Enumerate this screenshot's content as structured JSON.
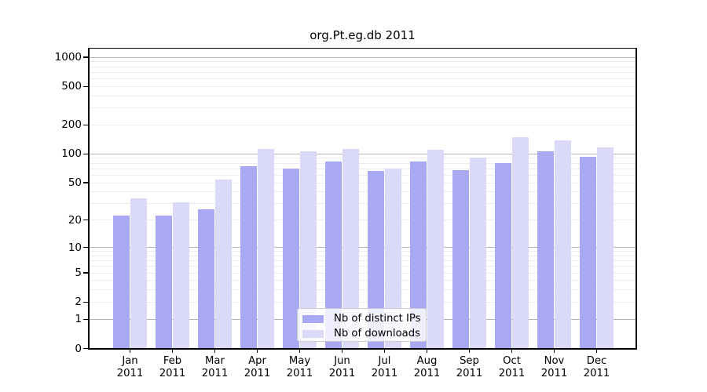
{
  "figure": {
    "background": "#ffffff"
  },
  "chart_data": {
    "type": "bar",
    "title": "org.Pt.eg.db 2011",
    "categories": [
      "Jan 2011",
      "Feb 2011",
      "Mar 2011",
      "Apr 2011",
      "May 2011",
      "Jun 2011",
      "Jul 2011",
      "Aug 2011",
      "Sep 2011",
      "Oct 2011",
      "Nov 2011",
      "Dec 2011"
    ],
    "x_tick_months": [
      "Jan",
      "Feb",
      "Mar",
      "Apr",
      "May",
      "Jun",
      "Jul",
      "Aug",
      "Sep",
      "Oct",
      "Nov",
      "Dec"
    ],
    "x_tick_year": "2011",
    "series": [
      {
        "name": "Nb of distinct IPs",
        "color": "#a9a9f3",
        "values": [
          22,
          22,
          26,
          74,
          70,
          83,
          66,
          82,
          67,
          80,
          106,
          92
        ]
      },
      {
        "name": "Nb of downloads",
        "color": "#dadaf8",
        "values": [
          34,
          31,
          54,
          112,
          105,
          112,
          70,
          109,
          90,
          147,
          138,
          115
        ]
      }
    ],
    "y_axis": {
      "scale": "log10(value+1)",
      "tick_values": [
        0,
        1,
        2,
        5,
        10,
        20,
        50,
        100,
        200,
        500,
        1000
      ],
      "major_grid_values": [
        1,
        10,
        100,
        1000
      ],
      "minor_grid_values": [
        2,
        3,
        4,
        5,
        6,
        7,
        8,
        9,
        20,
        30,
        40,
        50,
        60,
        70,
        80,
        90,
        200,
        300,
        400,
        500,
        600,
        700,
        800,
        900
      ],
      "major_grid_color": "#b5b5b5",
      "minor_grid_color": "#ececec",
      "ylim_top": 1200
    },
    "legend": {
      "position": "bottom-center"
    },
    "grid": true
  }
}
